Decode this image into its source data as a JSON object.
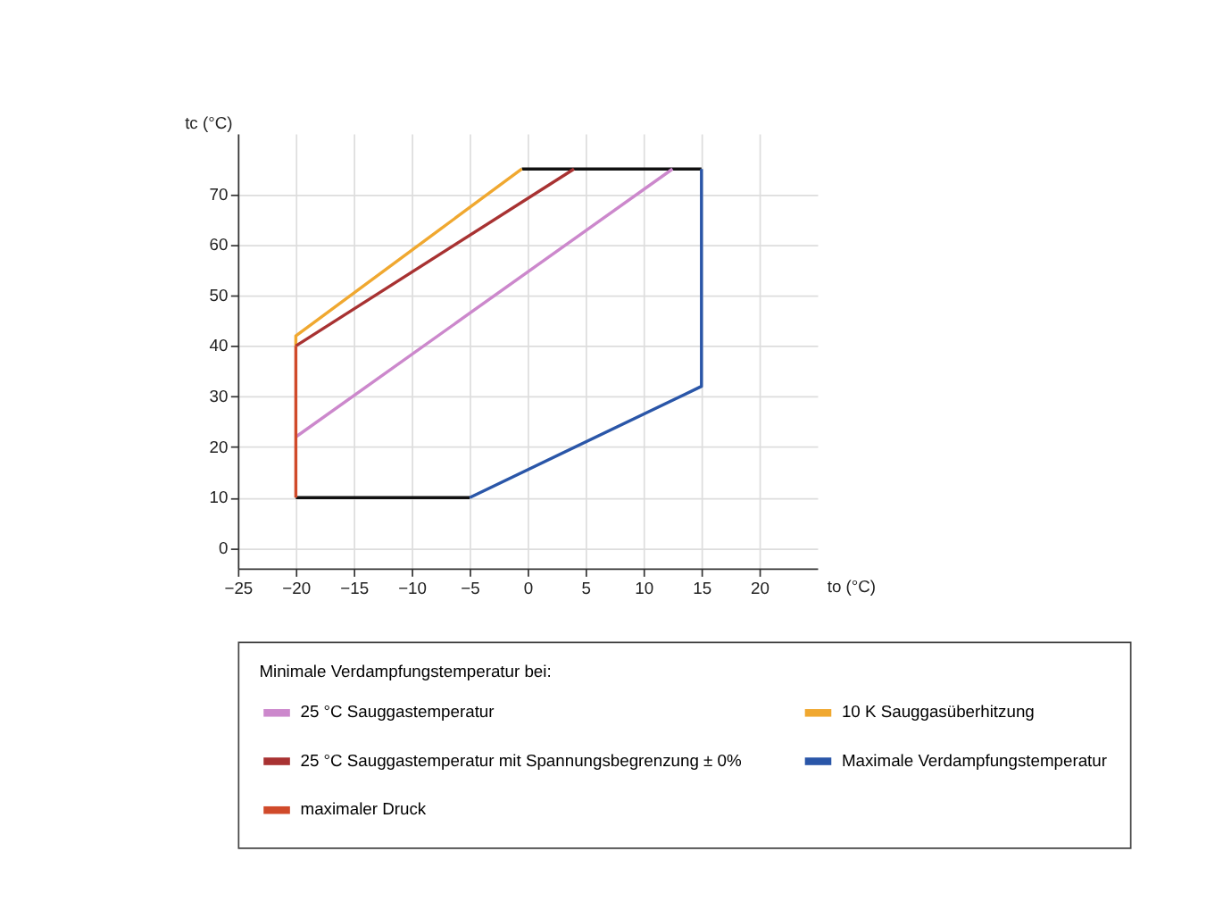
{
  "chart_data": {
    "type": "line",
    "xlabel": "to (°C)",
    "ylabel": "tc (°C)",
    "legend_title": "Minimale Verdampfungstemperatur bei:",
    "xlim": [
      -25,
      25
    ],
    "xticks": [
      -25,
      -20,
      -15,
      -10,
      -5,
      0,
      5,
      10,
      15,
      20
    ],
    "ylim": [
      -4,
      82
    ],
    "yticks": [
      0,
      10,
      20,
      30,
      40,
      50,
      60,
      70
    ],
    "grid": true,
    "legend": "bottom",
    "marker": "none",
    "line_style": "solid",
    "series": [
      {
        "color": "#111111",
        "x": [
          -20,
          -5,
          null,
          -0.5,
          15
        ],
        "values": [
          10,
          10,
          null,
          75,
          75
        ]
      },
      {
        "name": "25 °C Sauggastemperatur",
        "color": "#cc88cc",
        "x": [
          -20,
          12.5
        ],
        "values": [
          22,
          75
        ]
      },
      {
        "name": "10 K Sauggasüberhitzung",
        "color": "#f0a830",
        "x": [
          -20,
          -20,
          -0.5
        ],
        "values": [
          40,
          42,
          75
        ]
      },
      {
        "name": "25 °C Sauggastemperatur mit Spannungsbegrenzung ± 0%",
        "color": "#a83232",
        "x": [
          -20,
          4
        ],
        "values": [
          40,
          75
        ]
      },
      {
        "name": "Maximale Verdampfungstemperatur",
        "color": "#2a56a8",
        "x": [
          -5,
          15,
          15
        ],
        "values": [
          10,
          32,
          75
        ]
      },
      {
        "name": "maximaler Druck",
        "color": "#d04a2a",
        "x": [
          -20,
          -20
        ],
        "values": [
          10,
          40
        ]
      }
    ]
  }
}
